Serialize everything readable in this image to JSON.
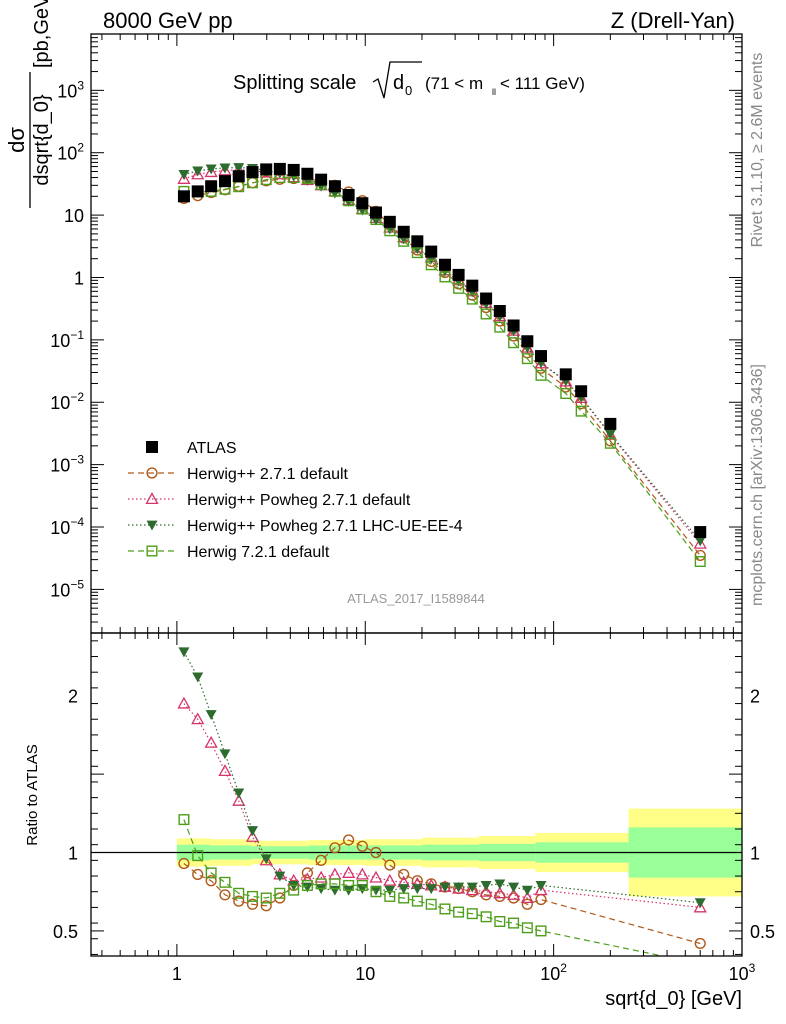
{
  "header": {
    "left": "8000 GeV pp",
    "right": "Z (Drell-Yan)"
  },
  "side_labels": {
    "rivet": "Rivet 3.1.10, ≥ 2.6M events",
    "mcplots": "mcplots.cern.ch [arXiv:1306.3436]"
  },
  "chart_data": [
    {
      "type": "scatter",
      "panel": "main",
      "title": "Splitting scale",
      "title_sqrt_var": "d",
      "title_sqrt_sub": "0",
      "title_range_a": "(71 < m",
      "title_range_sub": "ll",
      "title_range_b": " < 111 GeV)",
      "ylabel_num": "dσ",
      "ylabel_den": "dsqrt{d_0}",
      "ylabel_unit": "[pb,GeV",
      "ylabel_unit_sup": "-1",
      "ylabel_unit_end": "]",
      "watermark": "ATLAS_2017_I1589844",
      "xscale": "log",
      "yscale": "log",
      "xlim": [
        0.35,
        1000
      ],
      "ylim": [
        2e-06,
        8000
      ],
      "yticks": [
        {
          "v": 1e-05,
          "label": "10",
          "exp": "−5"
        },
        {
          "v": 0.0001,
          "label": "10",
          "exp": "−4"
        },
        {
          "v": 0.001,
          "label": "10",
          "exp": "−3"
        },
        {
          "v": 0.01,
          "label": "10",
          "exp": "−2"
        },
        {
          "v": 0.1,
          "label": "10",
          "exp": "−1"
        },
        {
          "v": 1,
          "label": "1",
          "exp": ""
        },
        {
          "v": 10,
          "label": "10",
          "exp": ""
        },
        {
          "v": 100,
          "label": "10",
          "exp": "2"
        },
        {
          "v": 1000,
          "label": "10",
          "exp": "3"
        }
      ],
      "legend_position": "bottom-left",
      "x": [
        1.09,
        1.29,
        1.52,
        1.8,
        2.13,
        2.52,
        2.98,
        3.52,
        4.17,
        4.93,
        5.83,
        6.9,
        8.16,
        9.65,
        11.4,
        13.5,
        16.0,
        18.9,
        22.4,
        26.5,
        31.3,
        37.0,
        43.8,
        51.8,
        61.3,
        72.5,
        85.7,
        116,
        140,
        200,
        600
      ],
      "series": [
        {
          "name": "ATLAS",
          "color": "#000000",
          "marker": "filled-square",
          "line": "none",
          "values": [
            20,
            24,
            29,
            35,
            42,
            49,
            54,
            55,
            53,
            46,
            37,
            29,
            21,
            15.5,
            11,
            7.8,
            5.4,
            3.8,
            2.6,
            1.6,
            1.1,
            0.74,
            0.46,
            0.29,
            0.17,
            0.095,
            0.055,
            0.028,
            0.015,
            0.0045,
            8.3e-05
          ]
        },
        {
          "name": "Herwig++ 2.7.1 default",
          "color": "#b05a1a",
          "marker": "open-circle",
          "line": "dashed",
          "values": [
            18.5,
            20.5,
            23,
            25.5,
            29,
            33,
            35.5,
            37.5,
            38.5,
            38.5,
            35,
            30,
            23.5,
            17,
            11.5,
            7.0,
            4.3,
            2.75,
            1.8,
            1.2,
            0.79,
            0.52,
            0.33,
            0.2,
            0.115,
            0.062,
            0.035,
            0.0175,
            0.0095,
            0.0024,
            3.5e-05
          ]
        },
        {
          "name": "Herwig++ Powheg 2.7.1 default",
          "color": "#d6336c",
          "marker": "open-triangle",
          "line": "dotted",
          "values": [
            38,
            45,
            49,
            52,
            53,
            52,
            48,
            45,
            40.5,
            36.5,
            30,
            24,
            17.5,
            12.5,
            9,
            6.3,
            4.4,
            3.0,
            2.1,
            1.3,
            0.9,
            0.6,
            0.39,
            0.24,
            0.14,
            0.075,
            0.042,
            0.0215,
            0.0117,
            0.003,
            5.4e-05
          ]
        },
        {
          "name": "Herwig++ Powheg 2.7.1 LHC-UE-EE-4",
          "color": "#2e6b2e",
          "marker": "filled-triangle-down",
          "line": "dotted",
          "values": [
            45,
            51,
            55,
            57,
            58,
            56,
            52,
            47,
            42,
            36,
            29,
            22.5,
            16.5,
            12,
            8.3,
            6.0,
            4.2,
            2.9,
            2.0,
            1.28,
            0.88,
            0.59,
            0.38,
            0.24,
            0.14,
            0.075,
            0.043,
            0.022,
            0.012,
            0.0031,
            6e-05
          ]
        },
        {
          "name": "Herwig 7.2.1 default",
          "color": "#4d9e1a",
          "marker": "open-square",
          "line": "dashed",
          "values": [
            24,
            23.5,
            24,
            26,
            28.5,
            33,
            37,
            40,
            40,
            38.5,
            31,
            24,
            17,
            12.5,
            8.5,
            5.6,
            3.8,
            2.5,
            1.6,
            1.02,
            0.67,
            0.45,
            0.26,
            0.16,
            0.09,
            0.05,
            0.027,
            0.0138,
            0.0072,
            0.0022,
            2.8e-05
          ]
        }
      ],
      "legend": [
        "ATLAS",
        "Herwig++ 2.7.1 default",
        "Herwig++ Powheg 2.7.1 default",
        "Herwig++ Powheg 2.7.1 LHC-UE-EE-4",
        "Herwig 7.2.1 default"
      ]
    },
    {
      "type": "line",
      "panel": "ratio",
      "ylabel": "Ratio to ATLAS",
      "xlabel": "sqrt{d_0} [GeV]",
      "xscale": "log",
      "xlim": [
        0.35,
        1000
      ],
      "ylim": [
        0.34,
        2.4
      ],
      "yticks": [
        {
          "v": 0.5,
          "label": "0.5"
        },
        {
          "v": 1,
          "label": "1"
        },
        {
          "v": 2,
          "label": "2"
        }
      ],
      "xticks": [
        {
          "v": 1,
          "label": "1",
          "exp": ""
        },
        {
          "v": 10,
          "label": "10",
          "exp": ""
        },
        {
          "v": 100,
          "label": "10",
          "exp": "2"
        },
        {
          "v": 1000,
          "label": "10",
          "exp": "3"
        }
      ],
      "bands": {
        "x_edges": [
          1.0,
          1.5,
          2.5,
          5,
          10,
          20,
          40,
          80,
          250,
          1000
        ],
        "inner_lo": [
          0.95,
          0.955,
          0.96,
          0.955,
          0.955,
          0.95,
          0.945,
          0.935,
          0.84
        ],
        "inner_hi": [
          1.05,
          1.045,
          1.04,
          1.045,
          1.045,
          1.05,
          1.055,
          1.065,
          1.16
        ],
        "outer_lo": [
          0.91,
          0.915,
          0.925,
          0.92,
          0.915,
          0.905,
          0.895,
          0.875,
          0.72
        ],
        "outer_hi": [
          1.09,
          1.085,
          1.075,
          1.08,
          1.085,
          1.095,
          1.105,
          1.125,
          1.28
        ],
        "inner_color": "#99ff99",
        "outer_color": "#ffff88"
      },
      "x": [
        1.09,
        1.29,
        1.52,
        1.8,
        2.13,
        2.52,
        2.98,
        3.52,
        4.17,
        4.93,
        5.83,
        6.9,
        8.16,
        9.65,
        11.4,
        13.5,
        16.0,
        18.9,
        22.4,
        26.5,
        31.3,
        37.0,
        43.8,
        51.8,
        61.3,
        72.5,
        85.7,
        600
      ],
      "series": [
        {
          "name": "Herwig++ 2.7.1 default",
          "color": "#b05a1a",
          "marker": "open-circle",
          "line": "dashed",
          "values": [
            0.93,
            0.86,
            0.82,
            0.73,
            0.69,
            0.67,
            0.66,
            0.71,
            0.79,
            0.87,
            0.95,
            1.03,
            1.08,
            1.04,
            1.0,
            0.92,
            0.86,
            0.82,
            0.8,
            0.78,
            0.77,
            0.75,
            0.73,
            0.72,
            0.71,
            0.67,
            0.7,
            0.42
          ]
        },
        {
          "name": "Herwig++ Powheg 2.7.1 default",
          "color": "#d6336c",
          "marker": "open-triangle",
          "line": "dotted",
          "values": [
            1.95,
            1.85,
            1.7,
            1.52,
            1.33,
            1.1,
            0.95,
            0.86,
            0.82,
            0.83,
            0.84,
            0.86,
            0.87,
            0.86,
            0.84,
            0.82,
            0.81,
            0.8,
            0.79,
            0.78,
            0.77,
            0.76,
            0.75,
            0.74,
            0.73,
            0.71,
            0.76,
            0.65
          ]
        },
        {
          "name": "Herwig++ Powheg 2.7.1 LHC-UE-EE-4",
          "color": "#2e6b2e",
          "marker": "filled-triangle-down",
          "line": "dotted",
          "values": [
            2.28,
            2.12,
            1.88,
            1.63,
            1.38,
            1.14,
            0.96,
            0.85,
            0.79,
            0.78,
            0.77,
            0.76,
            0.76,
            0.77,
            0.76,
            0.76,
            0.77,
            0.77,
            0.77,
            0.78,
            0.78,
            0.78,
            0.79,
            0.8,
            0.78,
            0.76,
            0.79,
            0.68
          ]
        },
        {
          "name": "Herwig 7.2.1 default",
          "color": "#4d9e1a",
          "marker": "open-square",
          "line": "dashed",
          "values": [
            1.21,
            0.98,
            0.87,
            0.81,
            0.74,
            0.72,
            0.71,
            0.74,
            0.76,
            0.79,
            0.8,
            0.8,
            0.79,
            0.79,
            0.75,
            0.72,
            0.71,
            0.69,
            0.67,
            0.64,
            0.62,
            0.61,
            0.59,
            0.56,
            0.55,
            0.52,
            0.5,
            0.29
          ]
        }
      ]
    }
  ]
}
